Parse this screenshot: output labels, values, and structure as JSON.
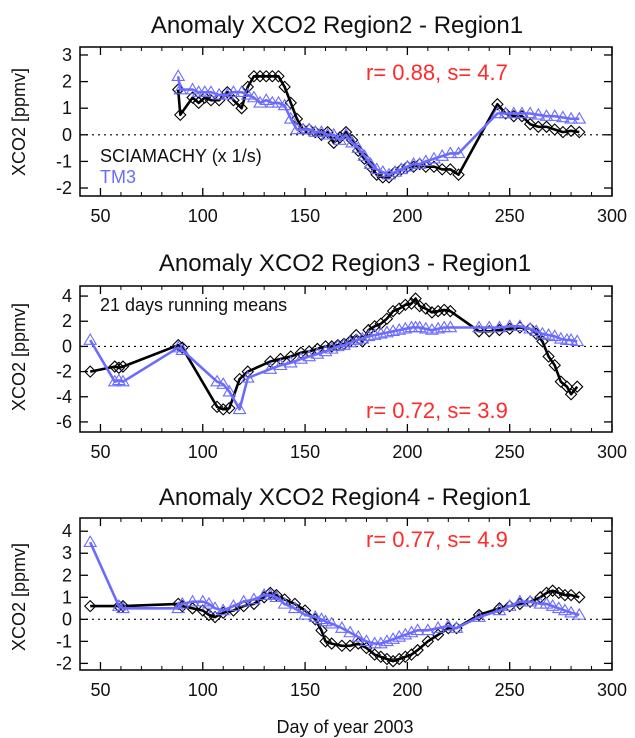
{
  "figure": {
    "xlabel": "Day of year 2003",
    "colors": {
      "sciamachy": "#000000",
      "tm3": "#6b6bff",
      "stats": "#ff2a2a",
      "zero_line": "#000000"
    }
  },
  "chart_data": [
    {
      "type": "line",
      "title": "Anomaly XCO2 Region2 - Region1",
      "ylabel": "XCO2 [ppmv]",
      "xlim": [
        40,
        300
      ],
      "ylim": [
        -2.3,
        3.3
      ],
      "xticks": [
        50,
        100,
        150,
        200,
        250,
        300
      ],
      "yticks": [
        -2,
        -1,
        0,
        1,
        2,
        3
      ],
      "stats_text": "r= 0.88, s=  4.7",
      "legend": [
        {
          "label": "SCIAMACHY (x 1/s)",
          "series": "sciamachy"
        },
        {
          "label": "TM3",
          "series": "tm3"
        }
      ],
      "series": [
        {
          "name": "SCIAMACHY (x 1/s)",
          "key": "sciamachy",
          "marker": "diamond",
          "x": [
            88,
            89,
            95,
            98,
            101,
            104,
            108,
            112,
            115,
            119,
            122,
            125,
            128,
            131,
            134,
            137,
            140,
            143,
            146,
            149,
            152,
            155,
            158,
            161,
            164,
            167,
            170,
            173,
            176,
            179,
            182,
            185,
            188,
            191,
            194,
            197,
            200,
            203,
            206,
            209,
            213,
            217,
            221,
            225,
            244,
            248,
            252,
            256,
            260,
            264,
            268,
            272,
            276,
            280,
            284
          ],
          "values": [
            1.7,
            0.75,
            1.4,
            1.2,
            1.4,
            1.3,
            1.3,
            1.6,
            1.3,
            1.0,
            1.8,
            2.2,
            2.2,
            2.2,
            2.2,
            2.2,
            1.8,
            1.2,
            0.6,
            0.2,
            0.2,
            0.1,
            0.0,
            0.1,
            -0.3,
            -0.1,
            0.1,
            -0.2,
            -0.6,
            -0.9,
            -1.2,
            -1.5,
            -1.6,
            -1.6,
            -1.4,
            -1.3,
            -1.2,
            -1.2,
            -1.1,
            -1.2,
            -1.2,
            -1.3,
            -1.3,
            -1.5,
            1.15,
            0.8,
            0.7,
            0.7,
            0.4,
            0.3,
            0.3,
            0.2,
            0.1,
            0.15,
            0.1
          ]
        },
        {
          "name": "TM3",
          "key": "tm3",
          "marker": "triangle",
          "x": [
            88,
            89,
            95,
            98,
            101,
            104,
            108,
            112,
            115,
            119,
            122,
            125,
            128,
            131,
            134,
            137,
            140,
            143,
            146,
            149,
            152,
            155,
            158,
            161,
            164,
            167,
            170,
            173,
            176,
            179,
            182,
            185,
            188,
            191,
            194,
            197,
            200,
            203,
            206,
            209,
            213,
            217,
            221,
            225,
            244,
            248,
            252,
            256,
            260,
            264,
            268,
            272,
            276,
            280,
            284
          ],
          "values": [
            2.2,
            1.7,
            1.7,
            1.6,
            1.6,
            1.6,
            1.5,
            1.5,
            1.6,
            1.6,
            1.5,
            1.4,
            1.2,
            1.3,
            1.2,
            1.2,
            1.1,
            0.6,
            0.2,
            0.2,
            0.2,
            0.1,
            0.1,
            0.0,
            0.0,
            -0.2,
            0.0,
            -0.3,
            -0.5,
            -0.8,
            -1.1,
            -1.3,
            -1.4,
            -1.5,
            -1.4,
            -1.3,
            -1.2,
            -1.1,
            -1.1,
            -1.0,
            -0.9,
            -0.8,
            -0.7,
            -0.7,
            0.8,
            0.8,
            0.8,
            0.8,
            0.8,
            0.75,
            0.7,
            0.7,
            0.65,
            0.6,
            0.6
          ]
        }
      ]
    },
    {
      "type": "line",
      "title": "Anomaly XCO2 Region3 - Region1",
      "ylabel": "XCO2 [ppmv]",
      "xlim": [
        40,
        300
      ],
      "ylim": [
        -6.8,
        4.8
      ],
      "xticks": [
        50,
        100,
        150,
        200,
        250,
        300
      ],
      "yticks": [
        -6,
        -4,
        -2,
        0,
        2,
        4
      ],
      "stats_text": "r= 0.72, s=  3.9",
      "annotation": "21 days running means",
      "series": [
        {
          "name": "SCIAMACHY (x 1/s)",
          "key": "sciamachy",
          "marker": "diamond",
          "x": [
            45,
            57,
            59,
            61,
            88,
            90,
            107,
            110,
            113,
            118,
            122,
            133,
            138,
            143,
            148,
            152,
            156,
            160,
            163,
            166,
            169,
            172,
            175,
            178,
            181,
            184,
            187,
            190,
            193,
            196,
            199,
            202,
            204,
            206,
            209,
            212,
            215,
            218,
            221,
            235,
            240,
            245,
            250,
            255,
            260,
            263,
            266,
            269,
            272,
            275,
            278,
            280,
            283
          ],
          "values": [
            -2.0,
            -1.6,
            -1.7,
            -1.6,
            0.1,
            -0.1,
            -4.8,
            -5.0,
            -4.9,
            -2.6,
            -2.0,
            -1.2,
            -1.0,
            -0.8,
            -0.5,
            -0.4,
            -0.2,
            0.0,
            0.0,
            0.1,
            0.2,
            0.4,
            0.9,
            0.4,
            1.3,
            1.6,
            1.8,
            2.2,
            2.8,
            3.0,
            3.3,
            3.4,
            3.8,
            3.2,
            3.0,
            2.7,
            2.8,
            2.9,
            2.8,
            1.2,
            1.2,
            1.3,
            1.4,
            1.5,
            1.4,
            1.0,
            0.4,
            -0.8,
            -1.5,
            -2.8,
            -3.2,
            -3.8,
            -3.2
          ]
        },
        {
          "name": "TM3",
          "key": "tm3",
          "marker": "triangle",
          "x": [
            45,
            57,
            59,
            61,
            88,
            90,
            107,
            110,
            113,
            118,
            122,
            133,
            138,
            143,
            148,
            152,
            156,
            160,
            163,
            166,
            169,
            172,
            175,
            178,
            181,
            184,
            187,
            190,
            193,
            196,
            199,
            202,
            204,
            206,
            209,
            212,
            215,
            218,
            221,
            235,
            240,
            245,
            250,
            255,
            260,
            263,
            266,
            269,
            272,
            275,
            278,
            280,
            283
          ],
          "values": [
            0.5,
            -2.8,
            -2.7,
            -2.8,
            -0.1,
            -0.3,
            -2.8,
            -3.0,
            -3.6,
            -5.0,
            -2.5,
            -1.8,
            -1.5,
            -1.3,
            -1.0,
            -0.8,
            -0.6,
            -0.4,
            -0.2,
            0.0,
            0.1,
            0.3,
            0.5,
            0.6,
            0.8,
            0.9,
            1.0,
            1.1,
            1.2,
            1.3,
            1.4,
            1.5,
            1.5,
            1.5,
            1.4,
            1.3,
            1.4,
            1.5,
            1.5,
            1.5,
            1.5,
            1.5,
            1.6,
            1.6,
            1.4,
            1.2,
            1.0,
            0.9,
            0.8,
            0.6,
            0.5,
            0.5,
            0.4
          ]
        }
      ]
    },
    {
      "type": "line",
      "title": "Anomaly XCO2 Region4 - Region1",
      "ylabel": "XCO2 [ppmv]",
      "xlim": [
        40,
        300
      ],
      "ylim": [
        -2.3,
        4.6
      ],
      "xticks": [
        50,
        100,
        150,
        200,
        250,
        300
      ],
      "yticks": [
        -2,
        -1,
        0,
        1,
        2,
        3,
        4
      ],
      "stats_text": "r= 0.77, s=  4.9",
      "series": [
        {
          "name": "SCIAMACHY (x 1/s)",
          "key": "sciamachy",
          "marker": "diamond",
          "x": [
            45,
            59,
            61,
            88,
            90,
            95,
            100,
            103,
            106,
            110,
            115,
            120,
            125,
            130,
            133,
            136,
            140,
            145,
            150,
            155,
            158,
            160,
            163,
            168,
            172,
            176,
            180,
            184,
            187,
            190,
            193,
            196,
            199,
            202,
            205,
            210,
            215,
            220,
            224,
            235,
            245,
            250,
            255,
            260,
            265,
            268,
            271,
            274,
            277,
            280,
            284
          ],
          "values": [
            0.6,
            0.6,
            0.6,
            0.7,
            0.6,
            0.5,
            0.4,
            0.2,
            0.1,
            0.3,
            0.4,
            0.6,
            0.7,
            1.0,
            1.2,
            1.1,
            0.9,
            0.7,
            0.4,
            0.0,
            -0.5,
            -1.0,
            -1.1,
            -1.2,
            -1.2,
            -1.1,
            -1.3,
            -1.6,
            -1.7,
            -1.8,
            -1.9,
            -1.8,
            -1.7,
            -1.6,
            -1.4,
            -1.0,
            -0.7,
            -0.4,
            -0.4,
            0.2,
            0.5,
            0.6,
            0.7,
            0.8,
            1.0,
            1.2,
            1.3,
            1.2,
            1.1,
            1.1,
            1.0
          ]
        },
        {
          "name": "TM3",
          "key": "tm3",
          "marker": "triangle",
          "x": [
            45,
            59,
            61,
            88,
            90,
            95,
            100,
            103,
            106,
            110,
            115,
            120,
            125,
            130,
            133,
            136,
            140,
            145,
            150,
            155,
            158,
            160,
            163,
            168,
            172,
            176,
            180,
            184,
            187,
            190,
            193,
            196,
            199,
            202,
            205,
            210,
            215,
            220,
            224,
            235,
            245,
            250,
            255,
            260,
            265,
            268,
            271,
            274,
            277,
            280,
            284
          ],
          "values": [
            3.5,
            0.6,
            0.5,
            0.5,
            0.7,
            0.8,
            0.8,
            0.7,
            0.5,
            0.4,
            0.6,
            0.8,
            0.9,
            1.1,
            1.1,
            1.0,
            0.7,
            0.5,
            0.2,
            0.1,
            0.0,
            -0.1,
            -0.2,
            -0.4,
            -0.6,
            -0.8,
            -1.0,
            -1.1,
            -1.1,
            -1.0,
            -0.9,
            -0.8,
            -0.7,
            -0.6,
            -0.5,
            -0.5,
            -0.4,
            -0.3,
            -0.4,
            0.1,
            0.4,
            0.6,
            0.8,
            0.8,
            0.7,
            0.7,
            0.6,
            0.5,
            0.4,
            0.3,
            0.2
          ]
        }
      ]
    }
  ]
}
